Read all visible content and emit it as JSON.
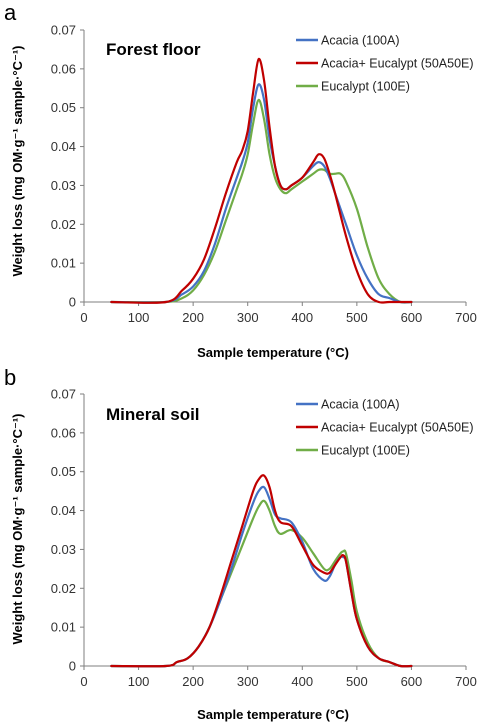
{
  "colors": {
    "acacia": "#4472C4",
    "mixed": "#C00000",
    "eucalypt": "#70AD47",
    "axis": "#7f7f7f"
  },
  "chart_data": [
    {
      "type": "line",
      "panel": "a",
      "title": "Forest floor",
      "xlabel": "Sample temperature (°C)",
      "ylabel": "Weight loss (mg OM·g⁻¹ sample·°C⁻¹)",
      "xlim": [
        0,
        700
      ],
      "ylim": [
        0,
        0.07
      ],
      "xticks": [
        "0",
        "100",
        "200",
        "300",
        "400",
        "500",
        "600",
        "700"
      ],
      "yticks": [
        "0",
        "0.01",
        "0.02",
        "0.03",
        "0.04",
        "0.05",
        "0.06",
        "0.07"
      ],
      "grid": false,
      "legend_position": "top-right",
      "series": [
        {
          "name": "Acacia (100A)",
          "color": "#4472C4",
          "x": [
            50,
            150,
            180,
            200,
            220,
            240,
            260,
            280,
            290,
            300,
            310,
            320,
            330,
            340,
            350,
            360,
            370,
            380,
            400,
            420,
            430,
            440,
            450,
            460,
            480,
            500,
            520,
            540,
            560,
            580,
            600
          ],
          "y": [
            0,
            0,
            0.002,
            0.004,
            0.008,
            0.015,
            0.024,
            0.032,
            0.036,
            0.041,
            0.05,
            0.056,
            0.052,
            0.042,
            0.035,
            0.03,
            0.029,
            0.03,
            0.032,
            0.035,
            0.036,
            0.035,
            0.032,
            0.028,
            0.02,
            0.012,
            0.006,
            0.002,
            0.001,
            0,
            0
          ]
        },
        {
          "name": "Acacia+ Eucalypt (50A50E)",
          "color": "#C00000",
          "x": [
            50,
            150,
            180,
            200,
            220,
            240,
            260,
            280,
            290,
            300,
            310,
            320,
            330,
            340,
            350,
            360,
            370,
            380,
            400,
            420,
            430,
            440,
            450,
            460,
            480,
            500,
            520,
            540,
            560,
            600
          ],
          "y": [
            0,
            0,
            0.003,
            0.006,
            0.011,
            0.019,
            0.028,
            0.036,
            0.039,
            0.044,
            0.054,
            0.0625,
            0.057,
            0.045,
            0.035,
            0.03,
            0.029,
            0.03,
            0.032,
            0.036,
            0.038,
            0.037,
            0.033,
            0.028,
            0.017,
            0.008,
            0.002,
            0,
            0,
            0
          ]
        },
        {
          "name": "Eucalypt (100E)",
          "color": "#70AD47",
          "x": [
            50,
            150,
            180,
            200,
            220,
            240,
            260,
            280,
            290,
            300,
            310,
            320,
            330,
            340,
            350,
            360,
            370,
            380,
            400,
            420,
            430,
            440,
            450,
            460,
            470,
            480,
            500,
            520,
            540,
            560,
            580,
            600
          ],
          "y": [
            0,
            0,
            0.001,
            0.003,
            0.007,
            0.013,
            0.021,
            0.029,
            0.033,
            0.038,
            0.046,
            0.052,
            0.047,
            0.038,
            0.032,
            0.029,
            0.028,
            0.029,
            0.031,
            0.033,
            0.034,
            0.034,
            0.033,
            0.033,
            0.033,
            0.031,
            0.024,
            0.014,
            0.006,
            0.002,
            0,
            0
          ]
        }
      ]
    },
    {
      "type": "line",
      "panel": "b",
      "title": "Mineral soil",
      "xlabel": "Sample temperature (°C)",
      "ylabel": "Weight loss (mg OM·g⁻¹ sample·°C⁻¹)",
      "xlim": [
        0,
        700
      ],
      "ylim": [
        0,
        0.07
      ],
      "xticks": [
        "0",
        "100",
        "200",
        "300",
        "400",
        "500",
        "600",
        "700"
      ],
      "yticks": [
        "0",
        "0.01",
        "0.02",
        "0.03",
        "0.04",
        "0.05",
        "0.06",
        "0.07"
      ],
      "grid": false,
      "legend_position": "top-right",
      "series": [
        {
          "name": "Acacia (100A)",
          "color": "#4472C4",
          "x": [
            50,
            150,
            170,
            190,
            210,
            230,
            250,
            270,
            290,
            310,
            320,
            330,
            340,
            350,
            360,
            380,
            400,
            420,
            440,
            450,
            460,
            470,
            475,
            480,
            490,
            500,
            520,
            540,
            560,
            580,
            600
          ],
          "y": [
            0,
            0,
            0.001,
            0.002,
            0.005,
            0.01,
            0.017,
            0.025,
            0.034,
            0.042,
            0.045,
            0.046,
            0.043,
            0.039,
            0.038,
            0.037,
            0.032,
            0.025,
            0.022,
            0.023,
            0.026,
            0.028,
            0.028,
            0.027,
            0.019,
            0.012,
            0.005,
            0.002,
            0.001,
            0,
            0
          ]
        },
        {
          "name": "Acacia+ Eucalypt (50A50E)",
          "color": "#C00000",
          "x": [
            50,
            150,
            170,
            190,
            210,
            230,
            250,
            270,
            290,
            310,
            320,
            330,
            340,
            350,
            360,
            380,
            400,
            420,
            440,
            450,
            460,
            470,
            475,
            480,
            490,
            500,
            520,
            540,
            560,
            580,
            600
          ],
          "y": [
            0,
            0,
            0.001,
            0.002,
            0.005,
            0.01,
            0.018,
            0.027,
            0.036,
            0.045,
            0.048,
            0.049,
            0.046,
            0.04,
            0.037,
            0.036,
            0.031,
            0.026,
            0.024,
            0.024,
            0.026,
            0.028,
            0.0285,
            0.027,
            0.019,
            0.012,
            0.005,
            0.002,
            0.001,
            0,
            0
          ]
        },
        {
          "name": "Eucalypt (100E)",
          "color": "#70AD47",
          "x": [
            50,
            150,
            170,
            190,
            210,
            230,
            250,
            270,
            290,
            310,
            320,
            330,
            340,
            350,
            360,
            380,
            400,
            420,
            440,
            450,
            460,
            470,
            475,
            480,
            490,
            500,
            520,
            540,
            560,
            580,
            600
          ],
          "y": [
            0,
            0,
            0.001,
            0.002,
            0.005,
            0.01,
            0.017,
            0.024,
            0.031,
            0.038,
            0.041,
            0.0425,
            0.04,
            0.036,
            0.034,
            0.035,
            0.033,
            0.029,
            0.025,
            0.025,
            0.027,
            0.029,
            0.0295,
            0.029,
            0.022,
            0.014,
            0.006,
            0.002,
            0.001,
            0,
            0
          ]
        }
      ]
    }
  ]
}
